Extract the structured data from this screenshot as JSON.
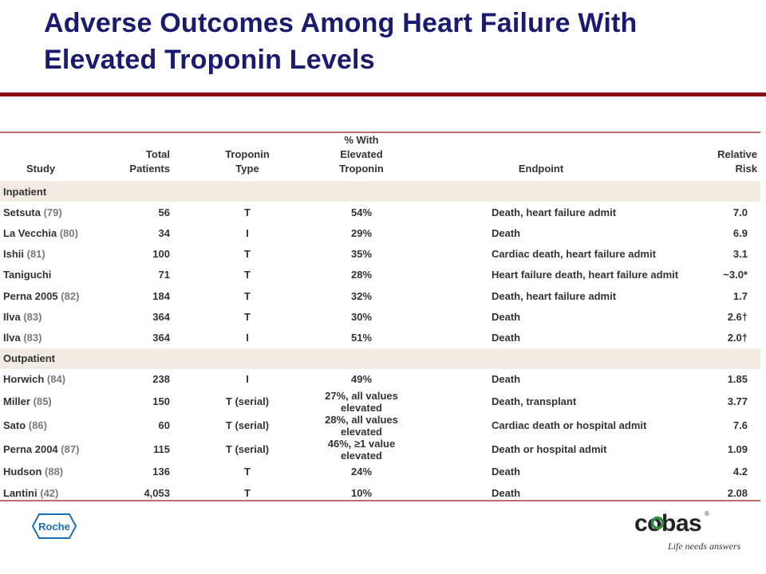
{
  "title": "Adverse Outcomes Among Heart Failure With Elevated Troponin Levels",
  "colors": {
    "title": "#1a1a6e",
    "accent_rule": "#8b1116",
    "table_rule": "#c46a6a",
    "section_band": "#f1ebe3"
  },
  "table": {
    "headers": {
      "study": "Study",
      "total_1": "Total",
      "total_2": "Patients",
      "type_1": "Troponin",
      "type_2": "Type",
      "pct_1": "% With Elevated",
      "pct_2": "Troponin",
      "endpoint": "Endpoint",
      "rr_1": "Relative",
      "rr_2": "Risk"
    },
    "sections": [
      {
        "label": "Inpatient",
        "rows": [
          {
            "study": "Setsuta",
            "ref": "(79)",
            "total": "56",
            "type": "T",
            "pct": "54%",
            "endpoint": "Death, heart failure admit",
            "rr": "7.0"
          },
          {
            "study": "La Vecchia",
            "ref": "(80)",
            "total": "34",
            "type": "I",
            "pct": "29%",
            "endpoint": "Death",
            "rr": "6.9"
          },
          {
            "study": "Ishii",
            "ref": "(81)",
            "total": "100",
            "type": "T",
            "pct": "35%",
            "endpoint": "Cardiac death, heart failure admit",
            "rr": "3.1"
          },
          {
            "study": "Taniguchi",
            "ref": "",
            "total": "71",
            "type": "T",
            "pct": "28%",
            "endpoint": "Heart failure death, heart failure admit",
            "rr": "~3.0*"
          },
          {
            "study": "Perna 2005",
            "ref": "(82)",
            "total": "184",
            "type": "T",
            "pct": "32%",
            "endpoint": "Death, heart failure admit",
            "rr": "1.7"
          },
          {
            "study": "Ilva",
            "ref": "(83)",
            "total": "364",
            "type": "T",
            "pct": "30%",
            "endpoint": "Death",
            "rr": "2.6†"
          },
          {
            "study": "Ilva",
            "ref": "(83)",
            "total": "364",
            "type": "I",
            "pct": "51%",
            "endpoint": "Death",
            "rr": "2.0†"
          }
        ]
      },
      {
        "label": "Outpatient",
        "rows": [
          {
            "study": "Horwich",
            "ref": "(84)",
            "total": "238",
            "type": "I",
            "pct": "49%",
            "endpoint": "Death",
            "rr": "1.85"
          },
          {
            "study": "Miller",
            "ref": "(85)",
            "total": "150",
            "type": "T (serial)",
            "pct": "27%, all values elevated",
            "endpoint": "Death, transplant",
            "rr": "3.77"
          },
          {
            "study": "Sato",
            "ref": "(86)",
            "total": "60",
            "type": "T (serial)",
            "pct": "28%, all values elevated",
            "endpoint": "Cardiac death or hospital admit",
            "rr": "7.6"
          },
          {
            "study": "Perna 2004",
            "ref": "(87)",
            "total": "115",
            "type": "T (serial)",
            "pct": "46%, ≥1 value elevated",
            "endpoint": "Death or hospital admit",
            "rr": "1.09"
          },
          {
            "study": "Hudson",
            "ref": "(88)",
            "total": "136",
            "type": "T",
            "pct": "24%",
            "endpoint": "Death",
            "rr": "4.2"
          },
          {
            "study": "Lantini",
            "ref": "(42)",
            "total": "4,053",
            "type": "T",
            "pct": "10%",
            "endpoint": "Death",
            "rr": "2.08"
          }
        ]
      }
    ]
  },
  "footer": {
    "roche_logo": "Roche",
    "cobas_logo": "cobas",
    "cobas_registered": "®",
    "cobas_tagline": "Life needs answers"
  }
}
